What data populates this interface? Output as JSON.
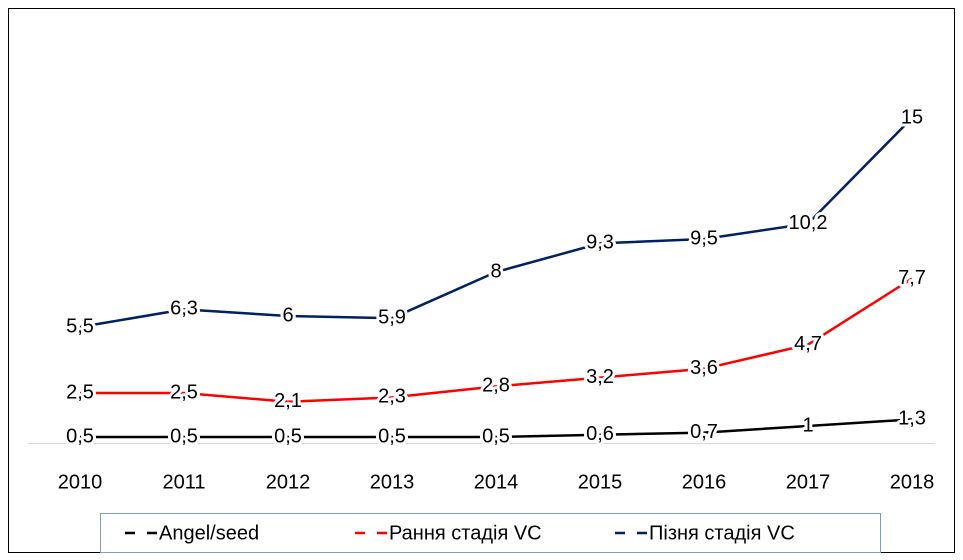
{
  "chart_data": {
    "type": "line",
    "categories": [
      "2010",
      "2011",
      "2012",
      "2013",
      "2014",
      "2015",
      "2016",
      "2017",
      "2018"
    ],
    "ylim": [
      0,
      16
    ],
    "legend": "bottom",
    "series": [
      {
        "name": "Angel/seed",
        "color": "#000000",
        "values": [
          0.5,
          0.5,
          0.5,
          0.5,
          0.5,
          0.6,
          0.7,
          1,
          1.3
        ],
        "value_labels": [
          "0,5",
          "0,5",
          "0,5",
          "0,5",
          "0,5",
          "0,6",
          "0,7",
          "1",
          "1,3"
        ]
      },
      {
        "name": "Рання стадія VC",
        "color": "#ff0000",
        "values": [
          2.5,
          2.5,
          2.1,
          2.3,
          2.8,
          3.2,
          3.6,
          4.7,
          7.7
        ],
        "value_labels": [
          "2,5",
          "2,5",
          "2,1",
          "2,3",
          "2,8",
          "3,2",
          "3,6",
          "4,7",
          "7,7"
        ]
      },
      {
        "name": "Пізня стадія VC",
        "color": "#002060",
        "values": [
          5.5,
          6.3,
          6,
          5.9,
          8,
          9.3,
          9.5,
          10.2,
          15
        ],
        "value_labels": [
          "5,5",
          "6,3",
          "6",
          "5,9",
          "8",
          "9,3",
          "9,5",
          "10,2",
          "15"
        ]
      }
    ]
  }
}
